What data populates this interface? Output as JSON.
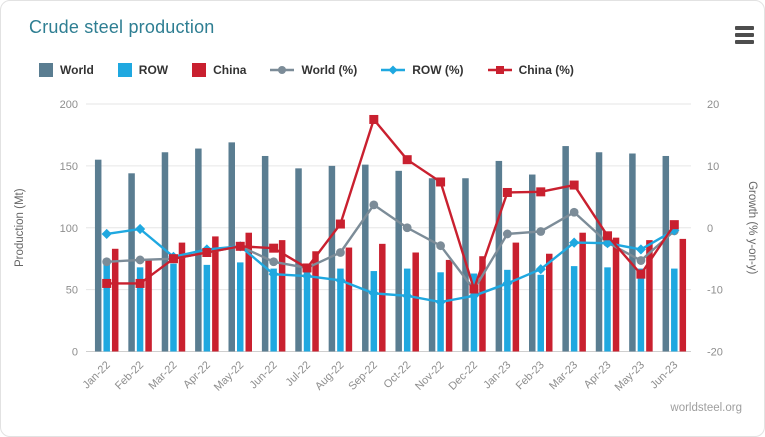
{
  "header": {
    "title": "Crude steel production",
    "menu_icon": "hamburger-icon"
  },
  "footer": {
    "source": "worldsteel.org"
  },
  "colors": {
    "world_bar": "#5a7d91",
    "row_bar": "#1fa8e0",
    "china_bar": "#c9202f",
    "world_line": "#7c8c98",
    "row_line": "#1fa8e0",
    "china_line": "#c9202f",
    "title": "#2e7e92",
    "grid": "#e6e6e6",
    "axis_line": "#cfcfcf",
    "tick_text": "#8e8e8e",
    "axis_title_text": "#666666",
    "legend_text": "#333333",
    "menu_icon": "#4d4d4d",
    "source_text": "#9e9e9e"
  },
  "chart_data": {
    "type": "bar+line combo",
    "grid": "horizontal",
    "legend_position": "top",
    "categories": [
      "Jan-22",
      "Feb-22",
      "Mar-22",
      "Apr-22",
      "May-22",
      "Jun-22",
      "Jul-22",
      "Aug-22",
      "Sep-22",
      "Oct-22",
      "Nov-22",
      "Dec-22",
      "Jan-23",
      "Feb-23",
      "Mar-23",
      "Apr-23",
      "May-23",
      "Jun-23"
    ],
    "left_axis": {
      "title": "Production (Mt)",
      "min": 0,
      "max": 200,
      "ticks": [
        0,
        50,
        100,
        150,
        200
      ]
    },
    "right_axis": {
      "title": "Growth (% y-on-y)",
      "min": -20,
      "max": 20,
      "ticks": [
        -20,
        -10,
        0,
        10,
        20
      ]
    },
    "bar_series": [
      {
        "name": "World",
        "axis": "left",
        "color_key": "world_bar",
        "values": [
          155,
          144,
          161,
          164,
          169,
          158,
          148,
          150,
          151,
          146,
          140,
          140,
          154,
          143,
          166,
          161,
          160,
          158
        ]
      },
      {
        "name": "ROW",
        "axis": "left",
        "color_key": "row_bar",
        "values": [
          73,
          68,
          71,
          70,
          72,
          67,
          68,
          67,
          65,
          67,
          64,
          63,
          66,
          62,
          69,
          68,
          67,
          67
        ]
      },
      {
        "name": "China",
        "axis": "left",
        "color_key": "china_bar",
        "values": [
          83,
          75,
          88,
          93,
          96,
          90,
          81,
          84,
          87,
          80,
          74,
          77,
          88,
          79,
          96,
          92,
          90,
          91
        ]
      }
    ],
    "line_series": [
      {
        "name": "World (%)",
        "axis": "right",
        "marker": "circle",
        "color_key": "world_line",
        "values": [
          -5.5,
          -5.2,
          -5.0,
          -4.0,
          -3.0,
          -5.5,
          -6.5,
          -4.0,
          3.7,
          0.0,
          -2.9,
          -10.0,
          -1.0,
          -0.6,
          2.5,
          -2.4,
          -5.3,
          -0.5
        ]
      },
      {
        "name": "ROW (%)",
        "axis": "right",
        "marker": "diamond",
        "color_key": "row_line",
        "values": [
          -1.0,
          -0.2,
          -4.7,
          -3.5,
          -3.0,
          -7.5,
          -7.8,
          -8.5,
          -10.6,
          -11.0,
          -12.0,
          -11.0,
          -9.0,
          -6.7,
          -2.4,
          -2.5,
          -3.5,
          -0.4
        ]
      },
      {
        "name": "China (%)",
        "axis": "right",
        "marker": "square",
        "color_key": "china_line",
        "values": [
          -9.0,
          -9.0,
          -5.0,
          -4.0,
          -3.0,
          -3.3,
          -6.5,
          0.6,
          17.5,
          11.0,
          7.4,
          -9.9,
          5.7,
          5.8,
          6.9,
          -1.3,
          -7.5,
          0.5
        ]
      }
    ]
  }
}
